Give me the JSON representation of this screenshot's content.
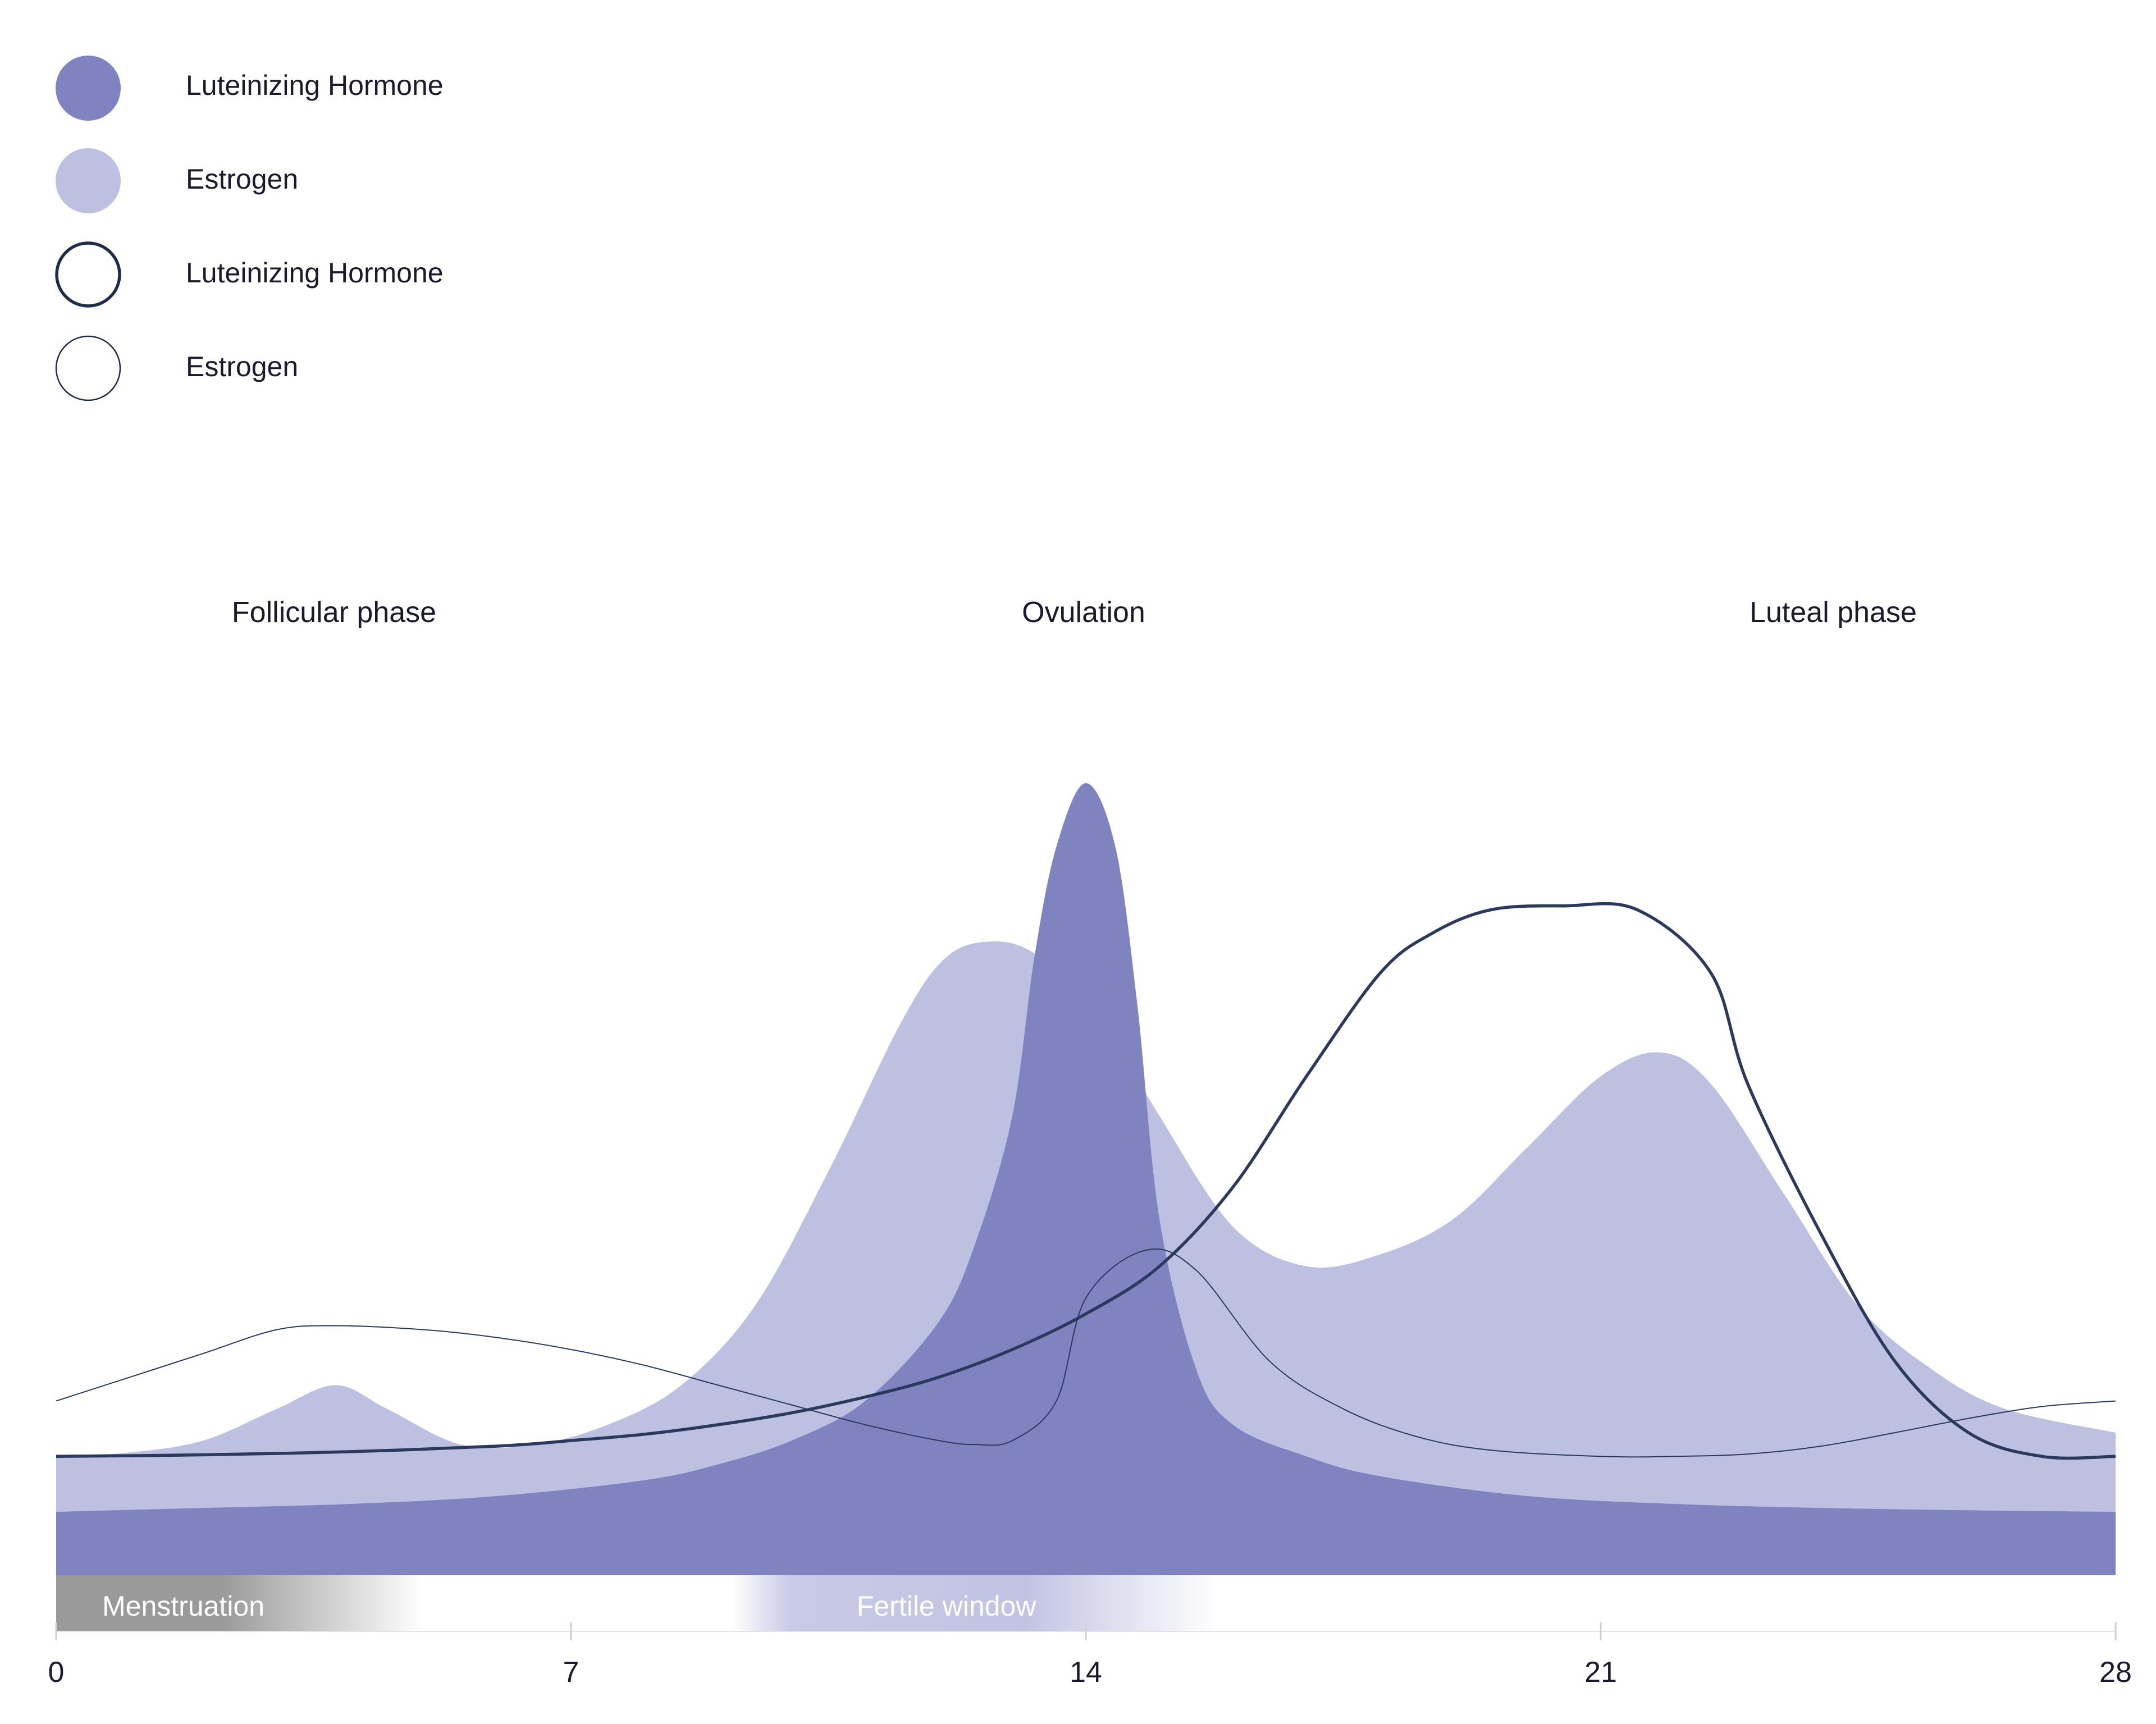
{
  "chart_data": {
    "type": "area",
    "title": "",
    "xlabel": "",
    "ylabel": "",
    "x_range": [
      0,
      28
    ],
    "x_ticks": [
      "0",
      "7",
      "14",
      "21",
      "28"
    ],
    "y_range": [
      0,
      100
    ],
    "grid": false,
    "legend_position": "top-left",
    "legend": [
      {
        "name": "Luteinizing Hormone",
        "style": "filled",
        "color": "#7f84c1"
      },
      {
        "name": "Estrogen",
        "style": "filled",
        "color": "#bec0e1"
      },
      {
        "name": "Luteinizing Hormone",
        "style": "outline-thick",
        "color": "#2b3a5c"
      },
      {
        "name": "Estrogen",
        "style": "outline-thin",
        "color": "#2b3a5c"
      }
    ],
    "phases": [
      {
        "label": "Follicular phase",
        "x": 3.8
      },
      {
        "label": "Ovulation",
        "x": 14
      },
      {
        "label": "Luteal phase",
        "x": 24.2
      }
    ],
    "bands": [
      {
        "label": "Menstruation",
        "start": 0,
        "end": 5,
        "color": "#9a9a9a"
      },
      {
        "label": "Fertile window",
        "start": 9.2,
        "end": 15.8,
        "color": "#bec0e1"
      }
    ],
    "series": [
      {
        "style": "area",
        "color": "#bec0e1",
        "x": [
          0,
          1,
          2,
          3,
          3.8,
          4.5,
          5.5,
          6.5,
          7.5,
          8.5,
          9.5,
          10.5,
          11.5,
          12.1,
          12.7,
          13.3,
          14,
          14.5,
          15,
          16,
          17,
          18,
          19,
          20,
          21,
          21.8,
          22.5,
          23.5,
          24.5,
          25.5,
          26.5,
          28
        ],
        "y": [
          15,
          15.5,
          17,
          21,
          24,
          21,
          16.5,
          16.5,
          19,
          24,
          34,
          51,
          70,
          78,
          80,
          78.5,
          72,
          66,
          58,
          44,
          39,
          40.5,
          45,
          54,
          63,
          66,
          62,
          48,
          34,
          26,
          21,
          18
        ]
      },
      {
        "style": "area",
        "color": "#7f84c1",
        "x": [
          0,
          2,
          4,
          6,
          8,
          9,
          10,
          11,
          12,
          12.5,
          13,
          13.3,
          13.6,
          14,
          14.4,
          14.7,
          15,
          15.5,
          16,
          17,
          18,
          20,
          22,
          24,
          26,
          28
        ],
        "y": [
          8,
          8.5,
          9,
          10,
          12,
          14,
          17,
          22,
          32,
          42,
          58,
          78,
          92,
          100,
          92,
          72,
          45,
          26,
          19,
          15,
          12.5,
          10,
          9,
          8.5,
          8.2,
          8
        ]
      },
      {
        "style": "line-thick",
        "color": "#2b3a5c",
        "x": [
          0,
          2,
          4,
          6,
          7,
          8,
          9,
          10,
          11,
          12,
          13,
          14,
          15,
          16,
          17,
          18,
          18.7,
          19.5,
          20.5,
          21.5,
          22.5,
          23,
          24,
          25,
          26,
          27,
          28
        ],
        "y": [
          15,
          15.2,
          15.6,
          16.3,
          17,
          17.8,
          19,
          20.5,
          22.5,
          25,
          28.5,
          33,
          39,
          49,
          63,
          76,
          81,
          84,
          84.5,
          84,
          76,
          62,
          43,
          27,
          18,
          15,
          15
        ]
      },
      {
        "style": "line-thin",
        "color": "#2b3a5c",
        "x": [
          0,
          1,
          2,
          3,
          3.8,
          5,
          6,
          7,
          8,
          9,
          10,
          11,
          12,
          12.5,
          13,
          13.6,
          14,
          14.8,
          15.5,
          16.5,
          17.5,
          18.5,
          19.5,
          21,
          22,
          23,
          24,
          25,
          26,
          27,
          28
        ],
        "y": [
          22,
          25,
          28,
          31,
          31.5,
          31,
          30,
          28.5,
          26.5,
          24,
          21.5,
          19,
          17,
          16.5,
          17,
          22,
          35,
          41,
          38.5,
          27,
          21,
          17.5,
          15.8,
          15,
          15,
          15.3,
          16.3,
          18,
          19.8,
          21.3,
          22
        ]
      }
    ]
  }
}
